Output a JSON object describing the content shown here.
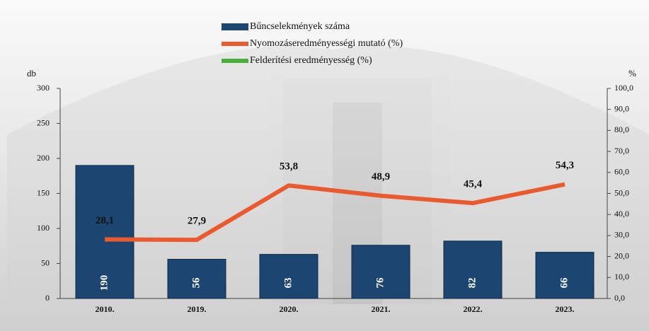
{
  "chart_data": {
    "type": "bar_line",
    "categories": [
      "2010.",
      "2019.",
      "2020.",
      "2021.",
      "2022.",
      "2023."
    ],
    "y_label": "db",
    "y2_label": "%",
    "ylim": [
      0,
      300
    ],
    "yticks": [
      0,
      50,
      100,
      150,
      200,
      250,
      300
    ],
    "y2lim": [
      0,
      100
    ],
    "y2ticks": [
      {
        "value": 0,
        "label": "0,0"
      },
      {
        "value": 10,
        "label": "10,0"
      },
      {
        "value": 20,
        "label": "20,0"
      },
      {
        "value": 30,
        "label": "30,0"
      },
      {
        "value": 40,
        "label": "40,0"
      },
      {
        "value": 50,
        "label": "50,0"
      },
      {
        "value": 60,
        "label": "60,0"
      },
      {
        "value": 70,
        "label": "70,0"
      },
      {
        "value": 80,
        "label": "80,0"
      },
      {
        "value": 90,
        "label": "90,0"
      },
      {
        "value": 100,
        "label": "100,0"
      }
    ],
    "series": [
      {
        "name": "Bűncselekmények száma",
        "type": "bar",
        "color": "#1c4670",
        "values": [
          190,
          56,
          63,
          76,
          82,
          66
        ]
      },
      {
        "name": "Nyomozáseredményességi mutató (%)",
        "type": "line",
        "axis": "y2",
        "color": "#ea5a2e",
        "values": [
          28.1,
          27.9,
          53.8,
          48.9,
          45.4,
          54.3
        ],
        "value_labels": [
          "28,1",
          "27,9",
          "53,8",
          "48,9",
          "45,4",
          "54,3"
        ]
      },
      {
        "name": "Felderítési eredményesség (%)",
        "type": "line",
        "axis": "y2",
        "color": "#4caf3a",
        "values": [
          null,
          null,
          null,
          null,
          null,
          null
        ]
      }
    ]
  }
}
